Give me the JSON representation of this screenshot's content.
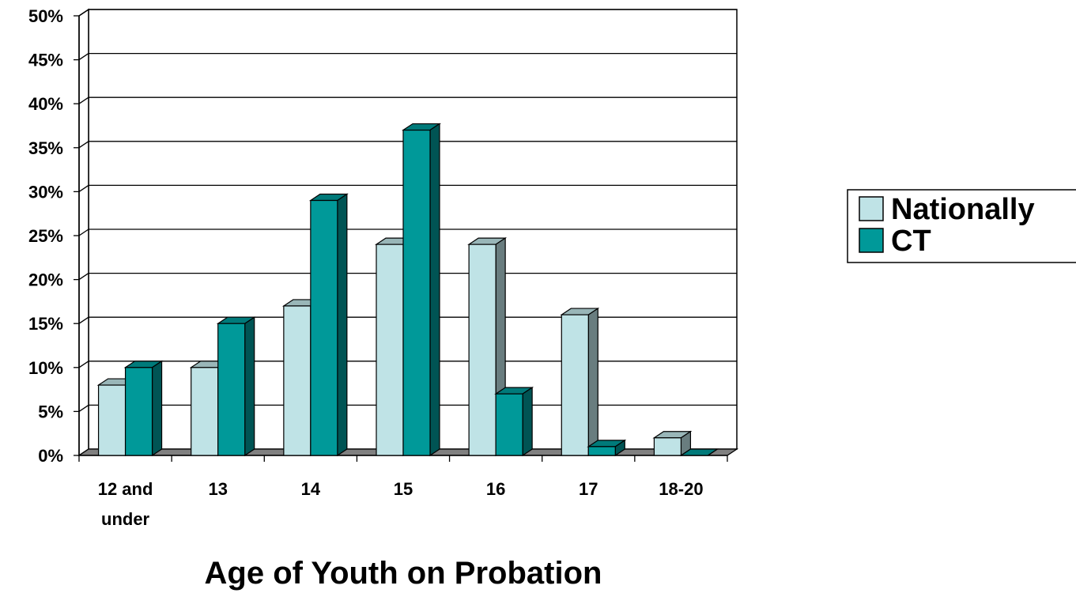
{
  "chart_data": {
    "type": "bar",
    "categories": [
      "12 and under",
      "13",
      "14",
      "15",
      "16",
      "17",
      "18-20"
    ],
    "series": [
      {
        "name": "Nationally",
        "values": [
          8,
          10,
          17,
          24,
          24,
          16,
          2
        ],
        "color": "#bfe3e6"
      },
      {
        "name": "CT",
        "values": [
          10,
          15,
          29,
          37,
          7,
          1,
          0
        ],
        "color": "#009999"
      }
    ],
    "xlabel": "Age of Youth on Probation",
    "ylabel": "",
    "ylim": [
      0,
      50
    ],
    "y_unit": "%",
    "ytick_step": 5,
    "y_ticks": [
      "0%",
      "5%",
      "10%",
      "15%",
      "20%",
      "25%",
      "30%",
      "35%",
      "40%",
      "45%",
      "50%"
    ],
    "grid": true,
    "legend_position": "right",
    "three_d": true
  }
}
